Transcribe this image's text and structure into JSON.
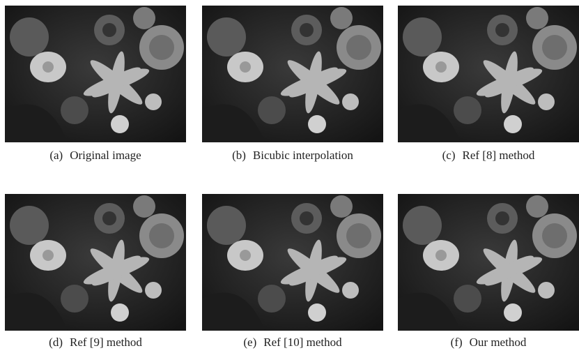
{
  "figure": {
    "panels": [
      {
        "label": "(a)",
        "caption": "Original image"
      },
      {
        "label": "(b)",
        "caption": "Bicubic interpolation"
      },
      {
        "label": "(c)",
        "caption": "Ref [8] method"
      },
      {
        "label": "(d)",
        "caption": "Ref [9] method"
      },
      {
        "label": "(e)",
        "caption": "Ref [10] method"
      },
      {
        "label": "(f)",
        "caption": "Our method"
      }
    ]
  }
}
